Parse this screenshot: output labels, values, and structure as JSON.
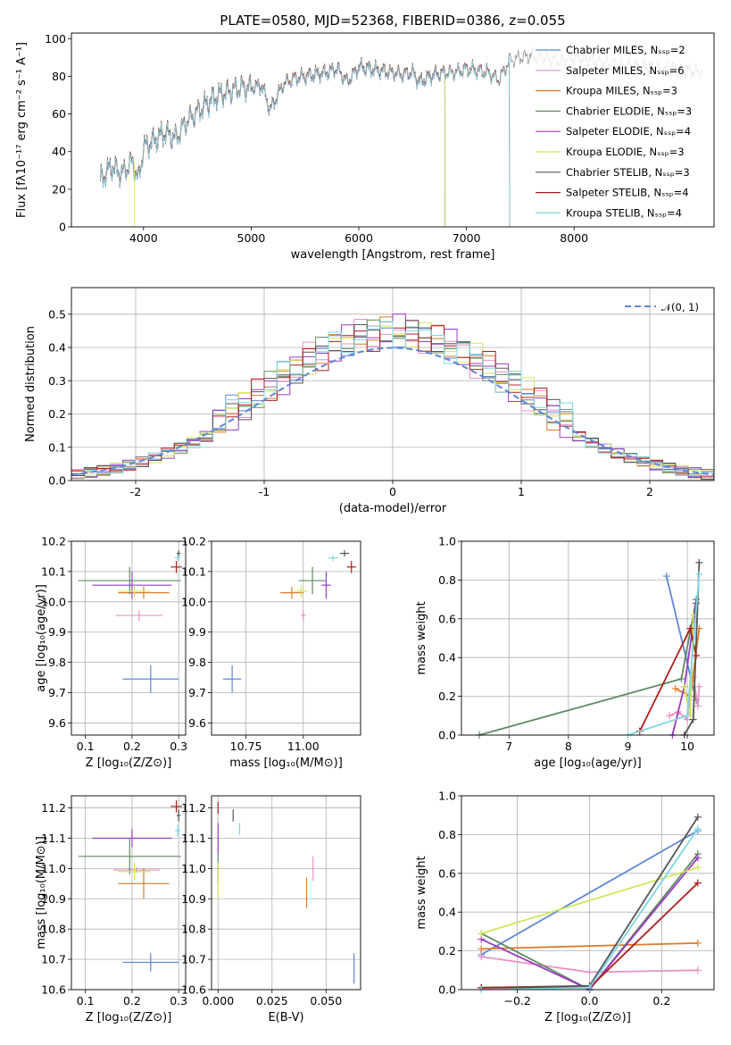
{
  "chart_data": [
    {
      "id": "spectrum",
      "type": "line",
      "title": "PLATE=0580, MJD=52368, FIBERID=0386, z=0.055",
      "xlabel": "wavelength [Angstrom, rest frame]",
      "ylabel": "Flux [fλ10⁻¹⁷ erg cm⁻² s⁻¹ A⁻¹]",
      "xlim": [
        3330,
        9300
      ],
      "ylim": [
        0,
        103
      ],
      "xticks": [
        4000,
        5000,
        6000,
        7000,
        8000
      ],
      "yticks": [
        0,
        20,
        40,
        60,
        80,
        100
      ],
      "grid": false,
      "legend_position": "right",
      "data_trace": {
        "x": [
          3600,
          3700,
          3800,
          3900,
          3950,
          4000,
          4100,
          4200,
          4300,
          4400,
          4500,
          4600,
          4700,
          4800,
          4900,
          5000,
          5100,
          5175,
          5300,
          5400,
          5500,
          5600,
          5700,
          5800,
          5893,
          6000,
          6100,
          6200,
          6300,
          6400,
          6500,
          6563,
          6700,
          6800,
          6900,
          7000,
          7100,
          7200,
          7300,
          7400,
          7500,
          7600,
          7700,
          7800,
          7900,
          8000,
          8100,
          8200,
          8300,
          8400,
          8500,
          8600,
          8700,
          8800,
          8900,
          9000,
          9100,
          9200
        ],
        "y": [
          25,
          32,
          28,
          35,
          24,
          42,
          46,
          50,
          47,
          56,
          61,
          66,
          70,
          72,
          74,
          74,
          75,
          62,
          76,
          79,
          80,
          81,
          82,
          84,
          77,
          85,
          84,
          83,
          82,
          81,
          82,
          77,
          81,
          82,
          82,
          84,
          83,
          82,
          78,
          88,
          90,
          91,
          90,
          89,
          88,
          90,
          89,
          88,
          87,
          86,
          86,
          85,
          85,
          84,
          84,
          83,
          83,
          82
        ]
      },
      "series": [
        {
          "name": "Chabrier MILES, N_SSP=2",
          "color": "#5f86d6",
          "cutoff": null,
          "offset": 0
        },
        {
          "name": "Salpeter MILES, N_SSP=6",
          "color": "#e990c3",
          "cutoff": null,
          "offset": 0.4
        },
        {
          "name": "Kroupa MILES, N_SSP=3",
          "color": "#e07b2a",
          "cutoff": null,
          "offset": -0.4
        },
        {
          "name": "Chabrier ELODIE, N_SSP=3",
          "color": "#5f8a62",
          "cutoff": 6800,
          "offset": 0.6
        },
        {
          "name": "Salpeter ELODIE, N_SSP=4",
          "color": "#9a3bc4",
          "cutoff": 6800,
          "offset": -0.6
        },
        {
          "name": "Kroupa ELODIE, N_SSP=3",
          "color": "#cfe85a",
          "cutoff": 6800,
          "offset": 0.2
        },
        {
          "name": "Chabrier STELIB, N_SSP=3",
          "color": "#555555",
          "cutoff": 7400,
          "offset": -0.2
        },
        {
          "name": "Salpeter STELIB, N_SSP=4",
          "color": "#b01c1c",
          "cutoff": 7400,
          "offset": 0.3
        },
        {
          "name": "Kroupa STELIB, N_SSP=4",
          "color": "#7fd6e3",
          "cutoff": 7400,
          "offset": -0.3
        }
      ],
      "legend": [
        "Chabrier MILES, Nₛₛₚ=2",
        "Salpeter MILES, Nₛₛₚ=6",
        "Kroupa MILES, Nₛₛₚ=3",
        "Chabrier ELODIE, Nₛₛₚ=3",
        "Salpeter ELODIE, Nₛₛₚ=4",
        "Kroupa ELODIE, Nₛₛₚ=3",
        "Chabrier STELIB, Nₛₛₚ=3",
        "Salpeter STELIB, Nₛₛₚ=4",
        "Kroupa STELIB, Nₛₛₚ=4"
      ]
    },
    {
      "id": "residuals",
      "type": "histogram",
      "xlabel": "(data-model)/error",
      "ylabel": "Normed distribution",
      "xlim": [
        -2.5,
        2.5
      ],
      "ylim": [
        0,
        0.58
      ],
      "xticks": [
        -2,
        -1,
        0,
        1,
        2
      ],
      "yticks": [
        0.0,
        0.1,
        0.2,
        0.3,
        0.4,
        0.5
      ],
      "grid": true,
      "legend": "𝒩(0, 1)",
      "legend_position": "top-right",
      "gaussian": {
        "mean": 0,
        "sigma": 1,
        "color": "#5f86d6"
      },
      "bin_width": 0.1,
      "bin_start": -2.5,
      "hist_colors": [
        "#5f86d6",
        "#e990c3",
        "#e07b2a",
        "#5f8a62",
        "#9a3bc4",
        "#cfe85a",
        "#555555",
        "#b01c1c",
        "#7fd6e3"
      ]
    },
    {
      "id": "age_vs_Z",
      "type": "errorbar",
      "xlabel": "Z [log₁₀(Z/Z⊙)]",
      "ylabel": "age  [log₁₀(age/yr)]",
      "xlim": [
        0.07,
        0.315
      ],
      "ylim": [
        9.56,
        10.2
      ],
      "xticks": [
        0.1,
        0.2,
        0.3
      ],
      "xtick_labels": [
        "0.1",
        "0.2",
        "0.3"
      ],
      "yticks": [
        9.6,
        9.7,
        9.8,
        9.9,
        10.0,
        10.1,
        10.2
      ],
      "ytick_labels": [
        "9.6",
        "9.7",
        "9.8",
        "9.9",
        "10.0",
        "10.1",
        "10.2"
      ],
      "grid": true,
      "points": [
        {
          "x": 0.24,
          "y": 9.745,
          "xerr": 0.06,
          "yerr": 0.045,
          "color": "#5f86d6"
        },
        {
          "x": 0.215,
          "y": 9.955,
          "xerr": 0.05,
          "yerr": 0.018,
          "color": "#e990c3"
        },
        {
          "x": 0.225,
          "y": 10.03,
          "xerr": 0.055,
          "yerr": 0.02,
          "color": "#e07b2a"
        },
        {
          "x": 0.195,
          "y": 10.07,
          "xerr": 0.11,
          "yerr": 0.045,
          "color": "#5f8a62"
        },
        {
          "x": 0.2,
          "y": 10.055,
          "xerr": 0.085,
          "yerr": 0.045,
          "color": "#9a3bc4"
        },
        {
          "x": 0.205,
          "y": 10.035,
          "xerr": 0.035,
          "yerr": 0.02,
          "color": "#cfe85a"
        },
        {
          "x": 0.3,
          "y": 10.16,
          "xerr": 0.004,
          "yerr": 0.01,
          "color": "#555555"
        },
        {
          "x": 0.295,
          "y": 10.115,
          "xerr": 0.012,
          "yerr": 0.02,
          "color": "#b01c1c"
        },
        {
          "x": 0.298,
          "y": 10.145,
          "xerr": 0.006,
          "yerr": 0.01,
          "color": "#7fd6e3"
        }
      ]
    },
    {
      "id": "age_vs_mass",
      "type": "errorbar",
      "xlabel": "mass [log₁₀(M/M⊙)]",
      "ylabel": "",
      "xlim": [
        10.6,
        11.25
      ],
      "ylim": [
        9.56,
        10.2
      ],
      "xticks": [
        10.75,
        11.0
      ],
      "xtick_labels": [
        "10.75",
        "11.00"
      ],
      "yticks": [
        9.6,
        9.7,
        9.8,
        9.9,
        10.0,
        10.1,
        10.2
      ],
      "ytick_labels": [
        "9.6",
        "9.7",
        "9.8",
        "9.9",
        "10.0",
        "10.1",
        "10.2"
      ],
      "grid": true,
      "points": [
        {
          "x": 10.69,
          "y": 9.745,
          "xerr": 0.04,
          "yerr": 0.045,
          "color": "#5f86d6"
        },
        {
          "x": 11.0,
          "y": 9.955,
          "xerr": 0.01,
          "yerr": 0.018,
          "color": "#e990c3"
        },
        {
          "x": 10.95,
          "y": 10.03,
          "xerr": 0.05,
          "yerr": 0.02,
          "color": "#e07b2a"
        },
        {
          "x": 11.04,
          "y": 10.07,
          "xerr": 0.06,
          "yerr": 0.045,
          "color": "#5f8a62"
        },
        {
          "x": 11.1,
          "y": 10.055,
          "xerr": 0.02,
          "yerr": 0.045,
          "color": "#9a3bc4"
        },
        {
          "x": 10.99,
          "y": 10.035,
          "xerr": 0.03,
          "yerr": 0.02,
          "color": "#cfe85a"
        },
        {
          "x": 11.18,
          "y": 10.16,
          "xerr": 0.02,
          "yerr": 0.01,
          "color": "#555555"
        },
        {
          "x": 11.21,
          "y": 10.115,
          "xerr": 0.02,
          "yerr": 0.02,
          "color": "#b01c1c"
        },
        {
          "x": 11.13,
          "y": 10.145,
          "xerr": 0.02,
          "yerr": 0.01,
          "color": "#7fd6e3"
        }
      ]
    },
    {
      "id": "massweight_vs_age",
      "type": "line",
      "xlabel": "age  [log₁₀(age/yr)]",
      "ylabel": "mass weight",
      "xlim": [
        6.2,
        10.45
      ],
      "ylim": [
        0,
        1.0
      ],
      "xticks": [
        7,
        8,
        9,
        10
      ],
      "yticks": [
        0.0,
        0.2,
        0.4,
        0.6,
        0.8,
        1.0
      ],
      "grid": true,
      "series": [
        {
          "color": "#5f86d6",
          "x": [
            9.65,
            10.15
          ],
          "y": [
            0.82,
            0.18
          ]
        },
        {
          "color": "#e990c3",
          "x": [
            9.7,
            9.85,
            10.0,
            10.1,
            10.18,
            10.2
          ],
          "y": [
            0.1,
            0.12,
            0.08,
            0.3,
            0.15,
            0.25
          ]
        },
        {
          "color": "#e07b2a",
          "x": [
            9.8,
            10.05,
            10.2
          ],
          "y": [
            0.24,
            0.2,
            0.55
          ]
        },
        {
          "color": "#5f8a62",
          "x": [
            6.5,
            9.9,
            10.15
          ],
          "y": [
            0.0,
            0.29,
            0.7
          ]
        },
        {
          "color": "#9a3bc4",
          "x": [
            9.75,
            9.95,
            10.15
          ],
          "y": [
            0.0,
            0.25,
            0.68
          ]
        },
        {
          "color": "#cfe85a",
          "x": [
            9.95,
            10.05,
            10.1
          ],
          "y": [
            0.25,
            0.1,
            0.62
          ]
        },
        {
          "color": "#555555",
          "x": [
            9.95,
            10.1,
            10.2
          ],
          "y": [
            0.0,
            0.08,
            0.89
          ]
        },
        {
          "color": "#b01c1c",
          "x": [
            9.2,
            10.05,
            10.15
          ],
          "y": [
            0.02,
            0.55,
            0.41
          ]
        },
        {
          "color": "#7fd6e3",
          "x": [
            9.0,
            10.0,
            10.2
          ],
          "y": [
            0.0,
            0.1,
            0.83
          ]
        }
      ]
    },
    {
      "id": "mass_vs_Z",
      "type": "errorbar",
      "xlabel": "Z [log₁₀(Z/Z⊙)]",
      "ylabel": "mass [log₁₀(M/M⊙)]",
      "xlim": [
        0.07,
        0.315
      ],
      "ylim": [
        10.6,
        11.24
      ],
      "xticks": [
        0.1,
        0.2,
        0.3
      ],
      "xtick_labels": [
        "0.1",
        "0.2",
        "0.3"
      ],
      "yticks": [
        10.6,
        10.7,
        10.8,
        10.9,
        11.0,
        11.1,
        11.2
      ],
      "ytick_labels": [
        "10.6",
        "10.7",
        "10.8",
        "10.9",
        "11.0",
        "11.1",
        "11.2"
      ],
      "grid": true,
      "points": [
        {
          "x": 0.24,
          "y": 10.69,
          "xerr": 0.06,
          "yerr": 0.03,
          "color": "#5f86d6"
        },
        {
          "x": 0.21,
          "y": 10.995,
          "xerr": 0.05,
          "yerr": 0.01,
          "color": "#e990c3"
        },
        {
          "x": 0.225,
          "y": 10.95,
          "xerr": 0.055,
          "yerr": 0.05,
          "color": "#e07b2a"
        },
        {
          "x": 0.195,
          "y": 11.04,
          "xerr": 0.11,
          "yerr": 0.06,
          "color": "#5f8a62"
        },
        {
          "x": 0.2,
          "y": 11.1,
          "xerr": 0.085,
          "yerr": 0.03,
          "color": "#9a3bc4"
        },
        {
          "x": 0.205,
          "y": 10.99,
          "xerr": 0.035,
          "yerr": 0.03,
          "color": "#cfe85a"
        },
        {
          "x": 0.3,
          "y": 11.175,
          "xerr": 0.004,
          "yerr": 0.02,
          "color": "#555555"
        },
        {
          "x": 0.295,
          "y": 11.205,
          "xerr": 0.012,
          "yerr": 0.02,
          "color": "#b01c1c"
        },
        {
          "x": 0.298,
          "y": 11.125,
          "xerr": 0.006,
          "yerr": 0.02,
          "color": "#7fd6e3"
        }
      ]
    },
    {
      "id": "mass_vs_ebv",
      "type": "errorbar",
      "xlabel": "E(B-V)",
      "ylabel": "",
      "xlim": [
        -0.003,
        0.066
      ],
      "ylim": [
        10.6,
        11.24
      ],
      "xticks": [
        0.0,
        0.025,
        0.05
      ],
      "xtick_labels": [
        "0.000",
        "0.025",
        "0.050"
      ],
      "yticks": [
        10.6,
        10.7,
        10.8,
        10.9,
        11.0,
        11.1,
        11.2
      ],
      "ytick_labels": [
        "10.6",
        "10.7",
        "10.8",
        "10.9",
        "11.0",
        "11.1",
        "11.2"
      ],
      "grid": true,
      "points": [
        {
          "x": 0.063,
          "y": 10.67,
          "xerr": 0.0,
          "yerr": 0.05,
          "color": "#5f86d6"
        },
        {
          "x": 0.044,
          "y": 11.0,
          "xerr": 0.0,
          "yerr": 0.04,
          "color": "#e990c3"
        },
        {
          "x": 0.041,
          "y": 10.92,
          "xerr": 0.0,
          "yerr": 0.05,
          "color": "#e07b2a"
        },
        {
          "x": 0.0,
          "y": 11.0,
          "xerr": 0.0,
          "yerr": 0.05,
          "color": "#5f8a62"
        },
        {
          "x": 0.0,
          "y": 11.1,
          "xerr": 0.0,
          "yerr": 0.05,
          "color": "#9a3bc4"
        },
        {
          "x": 0.0,
          "y": 10.96,
          "xerr": 0.0,
          "yerr": 0.06,
          "color": "#cfe85a"
        },
        {
          "x": 0.007,
          "y": 11.175,
          "xerr": 0.0,
          "yerr": 0.02,
          "color": "#555555"
        },
        {
          "x": 0.0,
          "y": 11.2,
          "xerr": 0.0,
          "yerr": 0.02,
          "color": "#b01c1c"
        },
        {
          "x": 0.01,
          "y": 11.13,
          "xerr": 0.0,
          "yerr": 0.02,
          "color": "#7fd6e3"
        }
      ]
    },
    {
      "id": "massweight_vs_Z",
      "type": "line",
      "xlabel": "Z [log₁₀(Z/Z⊙)]",
      "ylabel": "mass weight",
      "xlim": [
        -0.355,
        0.345
      ],
      "ylim": [
        0,
        1.0
      ],
      "xticks": [
        -0.2,
        0.0,
        0.2
      ],
      "xtick_labels": [
        "−0.2",
        "0.0",
        "0.2"
      ],
      "yticks": [
        0.0,
        0.2,
        0.4,
        0.6,
        0.8,
        1.0
      ],
      "grid": true,
      "series": [
        {
          "color": "#5f86d6",
          "x": [
            -0.3,
            0.3
          ],
          "y": [
            0.18,
            0.82
          ]
        },
        {
          "color": "#e990c3",
          "x": [
            -0.3,
            0.0,
            0.3
          ],
          "y": [
            0.17,
            0.09,
            0.1
          ]
        },
        {
          "color": "#e07b2a",
          "x": [
            -0.3,
            0.3
          ],
          "y": [
            0.21,
            0.24
          ]
        },
        {
          "color": "#5f8a62",
          "x": [
            -0.3,
            0.0,
            0.3
          ],
          "y": [
            0.29,
            0.0,
            0.7
          ]
        },
        {
          "color": "#9a3bc4",
          "x": [
            -0.3,
            0.0,
            0.3
          ],
          "y": [
            0.26,
            0.0,
            0.68
          ]
        },
        {
          "color": "#cfe85a",
          "x": [
            -0.3,
            0.3
          ],
          "y": [
            0.29,
            0.63
          ]
        },
        {
          "color": "#555555",
          "x": [
            -0.3,
            0.0,
            0.3
          ],
          "y": [
            0.01,
            0.02,
            0.89
          ]
        },
        {
          "color": "#b01c1c",
          "x": [
            -0.3,
            0.0,
            0.3
          ],
          "y": [
            0.01,
            0.01,
            0.55
          ]
        },
        {
          "color": "#7fd6e3",
          "x": [
            -0.3,
            0.0,
            0.3
          ],
          "y": [
            0.0,
            0.01,
            0.83
          ]
        }
      ]
    }
  ]
}
